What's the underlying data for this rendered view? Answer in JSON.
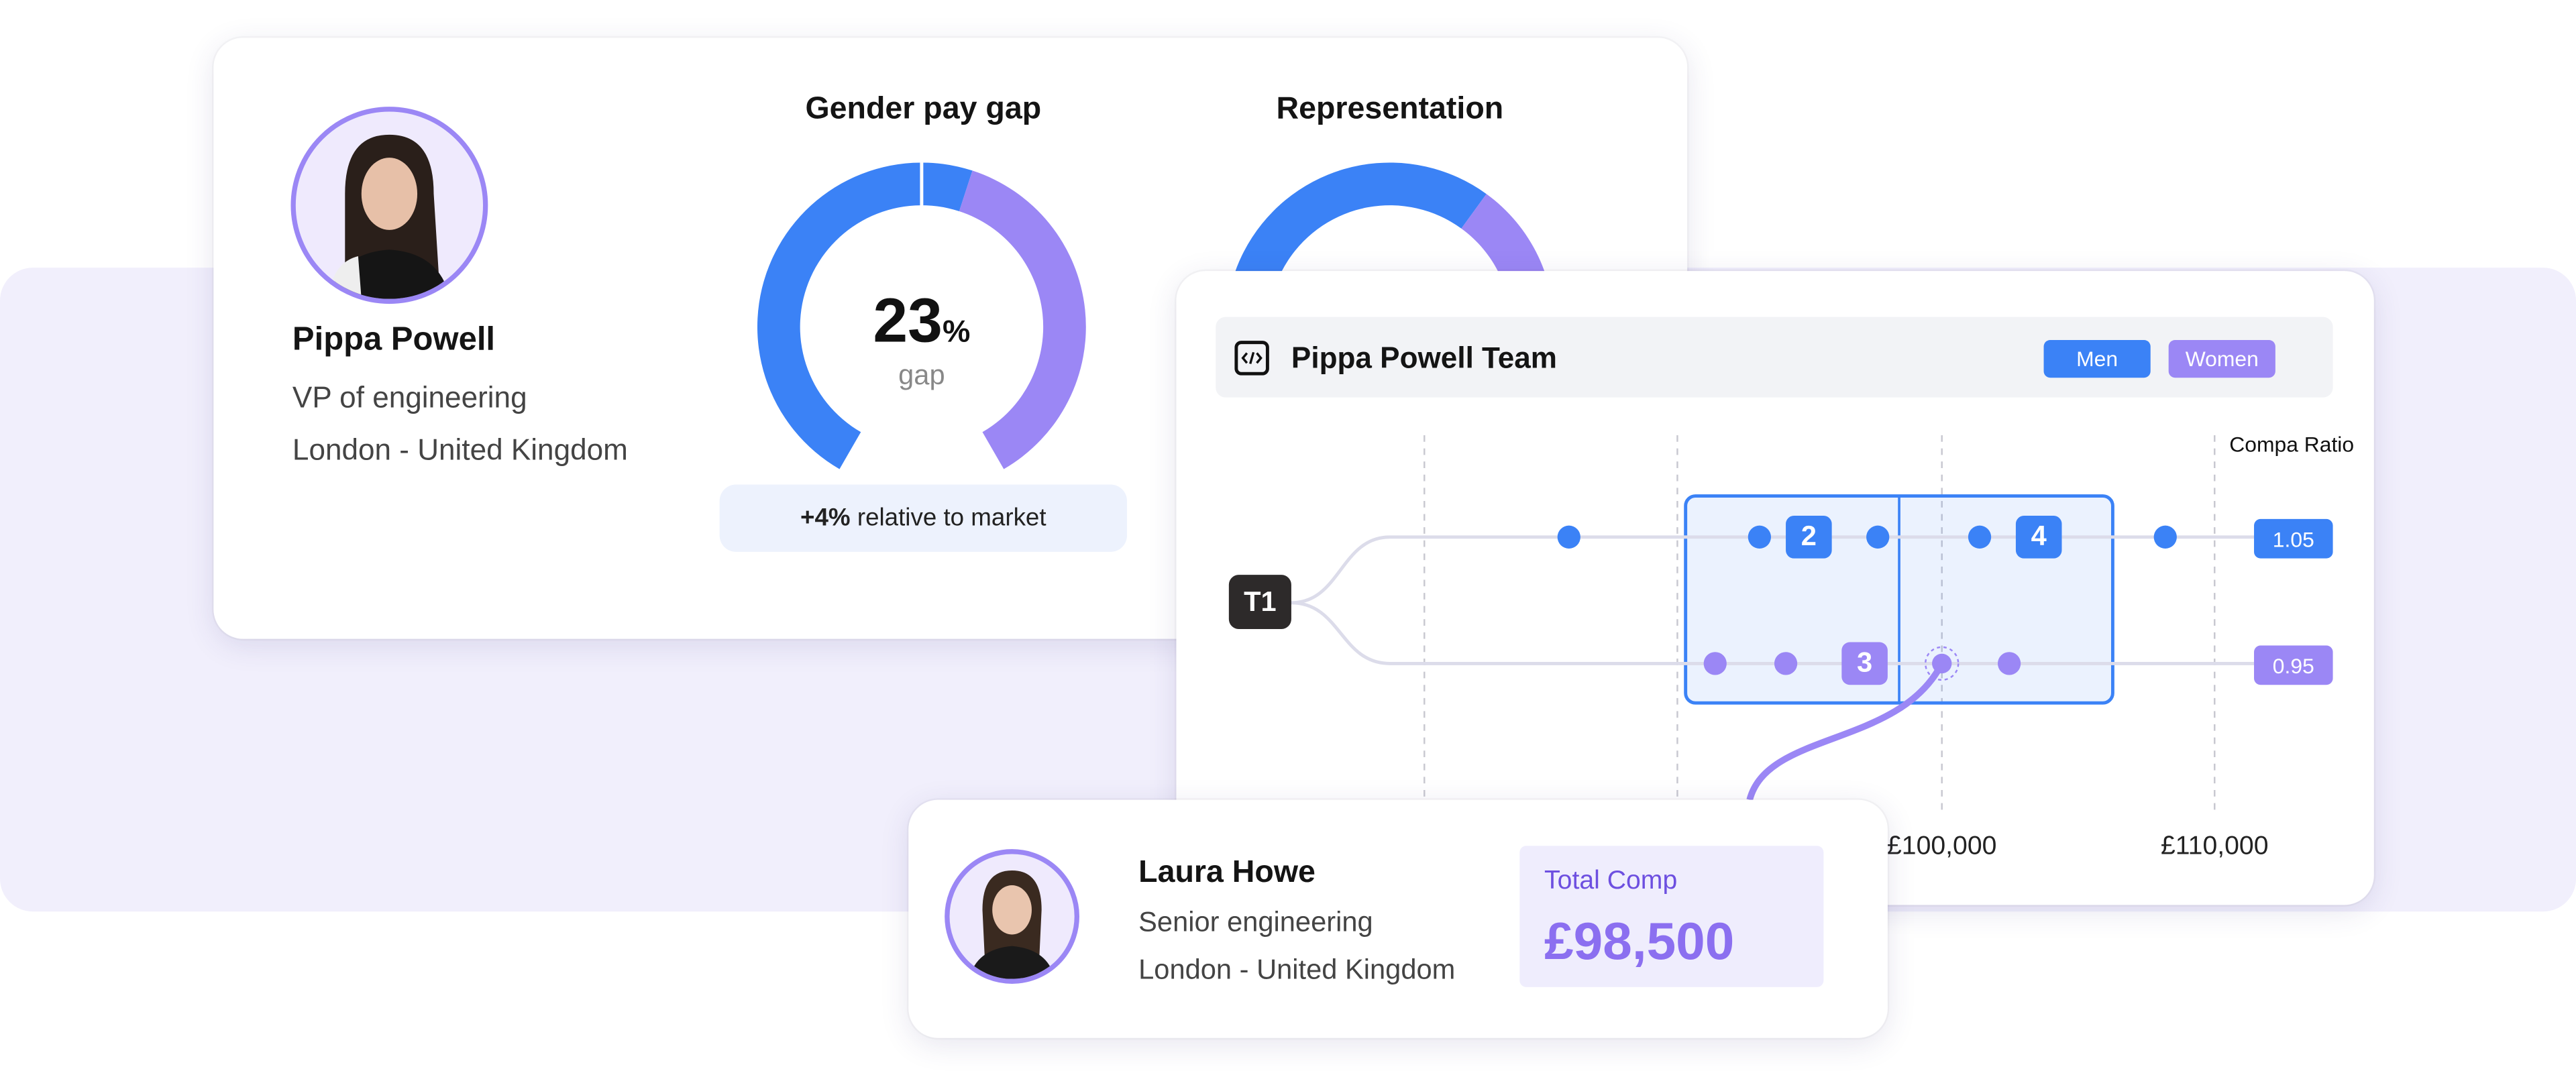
{
  "profile": {
    "name": "Pippa Powell",
    "role": "VP of engineering",
    "location": "London - United Kingdom"
  },
  "pay_gap": {
    "title": "Gender pay gap",
    "value": "23",
    "unit": "%",
    "caption": "gap",
    "market_value": "+4%",
    "market_text": " relative to market"
  },
  "representation": {
    "title": "Representation"
  },
  "team_chart": {
    "icon": "code-icon",
    "title": "Pippa Powell Team",
    "legend": {
      "men": "Men",
      "women": "Women"
    },
    "compa_label": "Compa Ratio",
    "tier": "T1",
    "compa_men": "1.05",
    "compa_women": "0.95",
    "cluster_labels": {
      "men_a": "2",
      "men_b": "4",
      "women_a": "3"
    },
    "axis_labels": [
      "£100,000",
      "£110,000"
    ]
  },
  "employee": {
    "name": "Laura Howe",
    "role": "Senior engineering",
    "location": "London - United Kingdom",
    "comp_label": "Total Comp",
    "comp_value": "£98,500"
  },
  "colors": {
    "men": "#3b82f6",
    "women": "#9b87f5",
    "band": "#f1effc",
    "tier": "#2d2a2a"
  }
}
